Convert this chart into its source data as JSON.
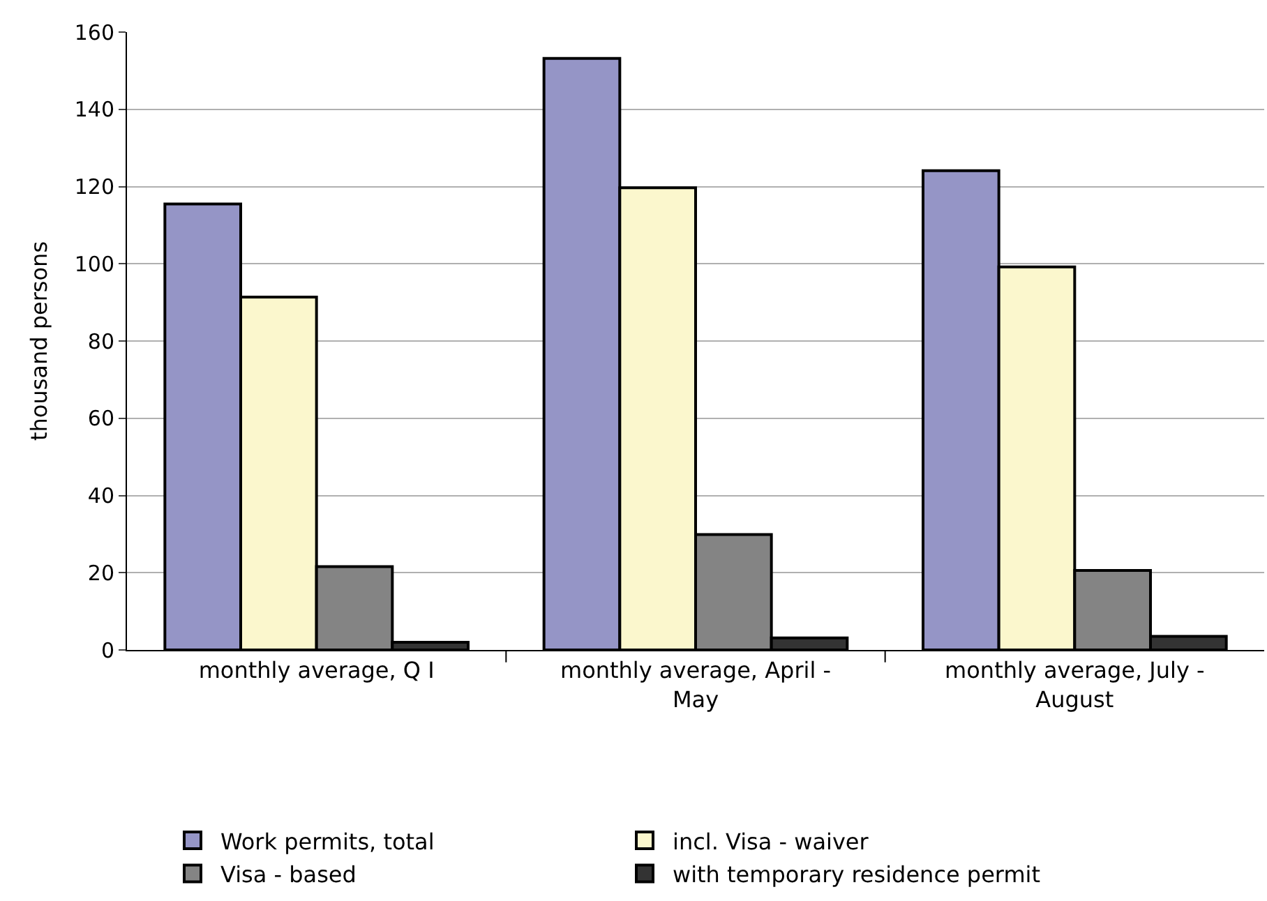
{
  "chart_data": {
    "type": "bar",
    "ylabel": "thousand persons",
    "categories": [
      "monthly average, Q I",
      "monthly average, April - May",
      "monthly average, July - August"
    ],
    "series": [
      {
        "name": "Work permits, total",
        "color": "#9595c6",
        "values": [
          115.5,
          153.2,
          124.1
        ]
      },
      {
        "name": "incl. Visa - waiver",
        "color": "#fbf7cd",
        "values": [
          91.4,
          119.7,
          99.2
        ]
      },
      {
        "name": "Visa - based",
        "color": "#848484",
        "values": [
          21.6,
          29.9,
          20.6
        ]
      },
      {
        "name": "with temporary residence permit",
        "color": "#333333",
        "values": [
          2.0,
          3.1,
          3.5
        ]
      }
    ],
    "ylim": [
      0,
      160
    ],
    "yticks": [
      0,
      20,
      40,
      60,
      80,
      100,
      120,
      140,
      160
    ],
    "grid": "y",
    "legend": "bottom"
  }
}
